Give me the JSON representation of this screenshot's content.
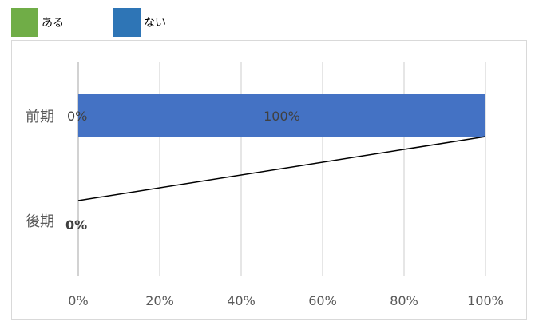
{
  "legend": [
    {
      "label": "ある",
      "color": "#70ad47"
    },
    {
      "label": "ない",
      "color": "#2e75b6"
    }
  ],
  "chart_data": {
    "type": "bar",
    "orientation": "horizontal",
    "stacked": true,
    "categories": [
      "前期",
      "後期"
    ],
    "series": [
      {
        "name": "ある",
        "color": "#70ad47",
        "values": [
          0,
          0
        ],
        "labels": [
          "0%",
          "0%"
        ]
      },
      {
        "name": "ない",
        "color": "#4472c4",
        "values": [
          100,
          0
        ],
        "labels": [
          "100%",
          ""
        ]
      }
    ],
    "xlim": [
      0,
      100
    ],
    "xticks": [
      "0%",
      "20%",
      "40%",
      "60%",
      "80%",
      "100%"
    ],
    "xgrid": true,
    "legend_position": "top-left",
    "title": "",
    "xlabel": "",
    "ylabel": ""
  }
}
